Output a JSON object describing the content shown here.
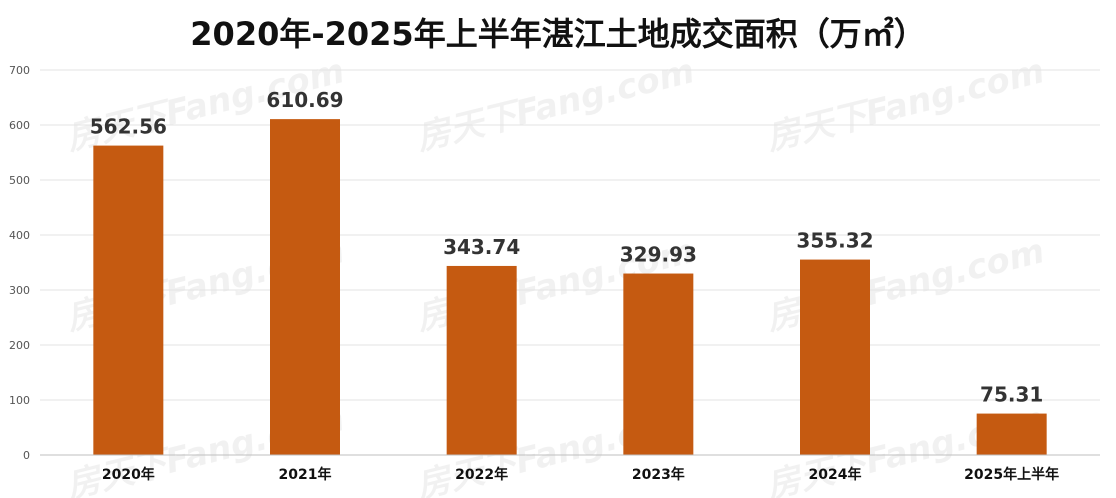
{
  "chart_data": {
    "type": "bar",
    "title": "2020年-2025年上半年湛江土地成交面积（万㎡）",
    "categories": [
      "2020年",
      "2021年",
      "2022年",
      "2023年",
      "2024年",
      "2025年上半年"
    ],
    "values": [
      562.56,
      610.69,
      343.74,
      329.93,
      355.32,
      75.31
    ],
    "value_labels": [
      "562.56",
      "610.69",
      "343.74",
      "329.93",
      "355.32",
      "75.31"
    ],
    "ylim": [
      0,
      700
    ],
    "yticks": [
      0,
      100,
      200,
      300,
      400,
      500,
      600,
      700
    ],
    "grid": true,
    "legend": "none",
    "bar_color": "#C55A11",
    "watermark": "房天下Fang.com"
  }
}
